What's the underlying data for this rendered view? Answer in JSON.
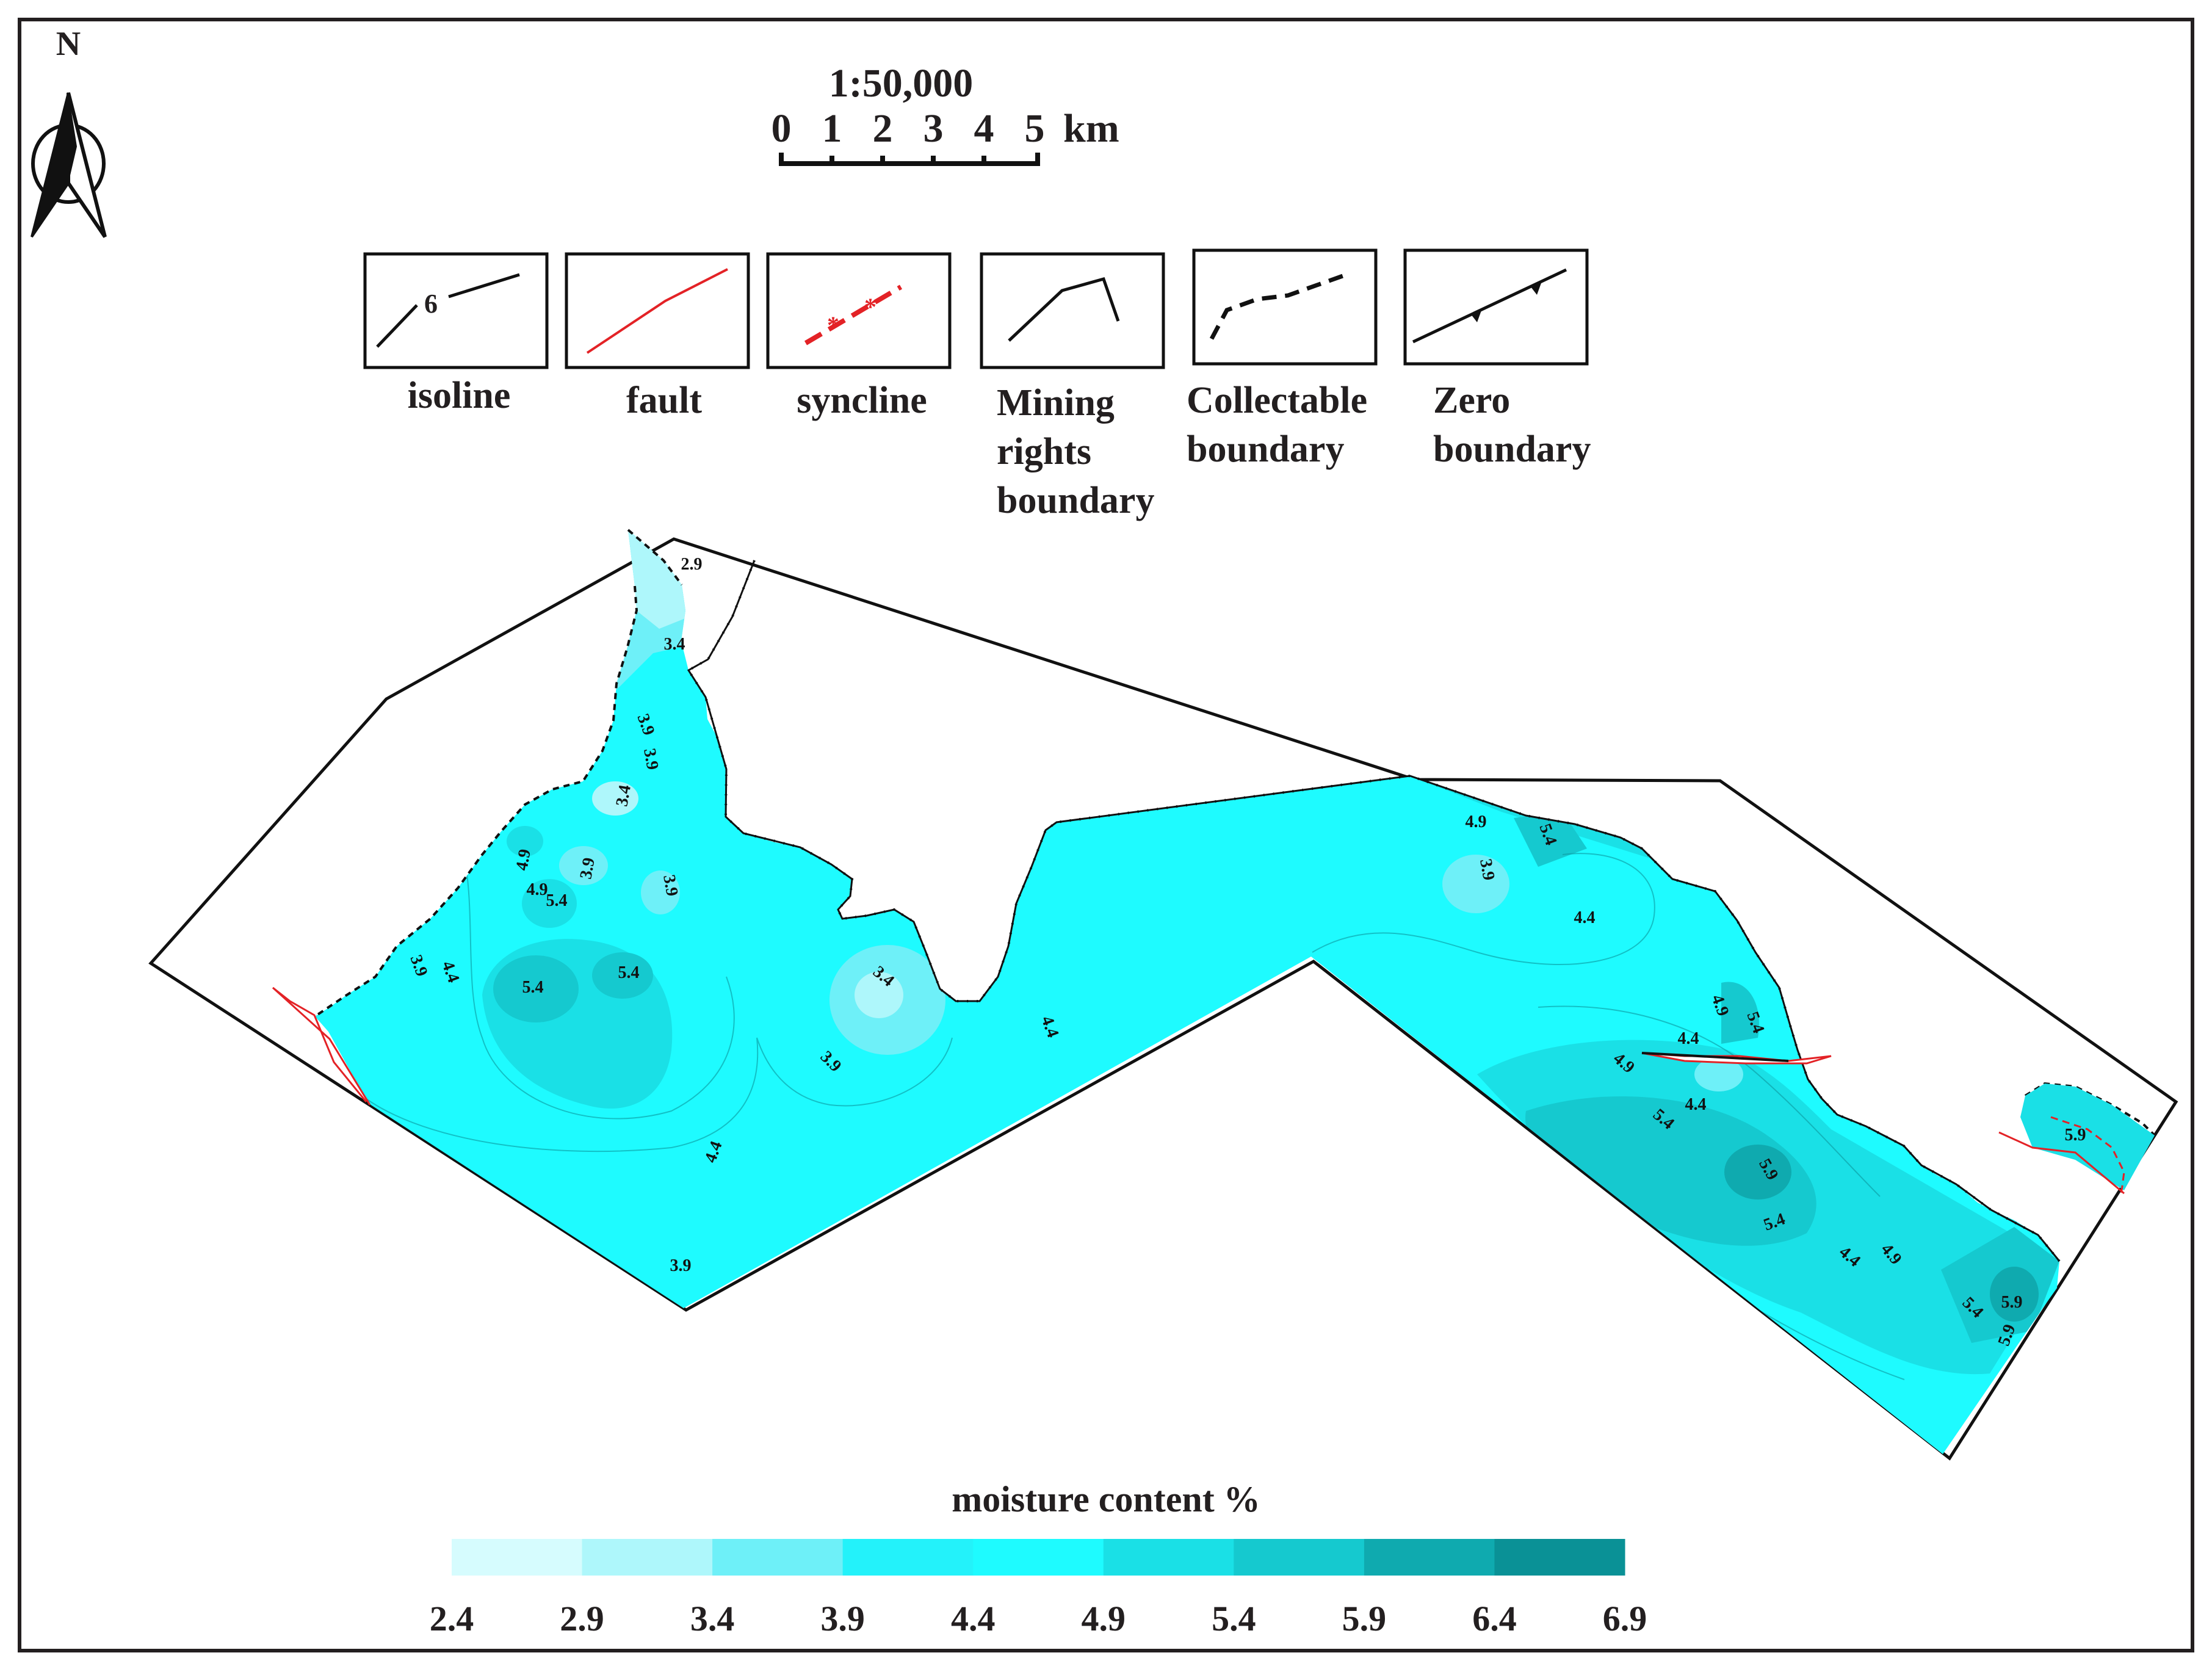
{
  "north": {
    "label": "N"
  },
  "scale": {
    "ratio": "1:50,000",
    "ticks": [
      "0",
      "1",
      "2",
      "3",
      "4",
      "5"
    ],
    "unit": "km"
  },
  "legend": [
    {
      "key": "isoline",
      "label_lines": [
        "isoline"
      ],
      "sample_text": "6"
    },
    {
      "key": "fault",
      "label_lines": [
        "fault"
      ]
    },
    {
      "key": "syncline",
      "label_lines": [
        "syncline"
      ]
    },
    {
      "key": "mining",
      "label_lines": [
        "Mining",
        "rights",
        "boundary"
      ]
    },
    {
      "key": "collectable",
      "label_lines": [
        "Collectable",
        "boundary"
      ]
    },
    {
      "key": "zero",
      "label_lines": [
        "Zero",
        "boundary"
      ]
    }
  ],
  "isoline_labels": [
    "2.9",
    "3.4",
    "3.9",
    "3.9",
    "3.4",
    "4.9",
    "3.9",
    "3.9",
    "4.9",
    "5.4",
    "3.9",
    "4.4",
    "5.4",
    "5.4",
    "3.4",
    "3.9",
    "4.4",
    "4.4",
    "3.9",
    "4.9",
    "5.4",
    "3.9",
    "4.4",
    "4.9",
    "5.4",
    "4.4",
    "4.9",
    "4.4",
    "5.4",
    "5.9",
    "5.4",
    "4.4",
    "4.9",
    "5.4",
    "5.9",
    "5.9",
    "5.9"
  ],
  "colorbar": {
    "title": "moisture content  %",
    "ticks": [
      "2.4",
      "2.9",
      "3.4",
      "3.9",
      "4.4",
      "4.9",
      "5.4",
      "5.9",
      "6.4",
      "6.9"
    ],
    "colors": [
      "#d6fcfe",
      "#aef7fb",
      "#6ef0f8",
      "#23f2fa",
      "#1efbff",
      "#1ae0e6",
      "#15c9cf",
      "#0faaaf",
      "#0a9196"
    ]
  },
  "colors": {
    "fault": "#e32226",
    "ink": "#111111",
    "frame": "#231f20"
  }
}
